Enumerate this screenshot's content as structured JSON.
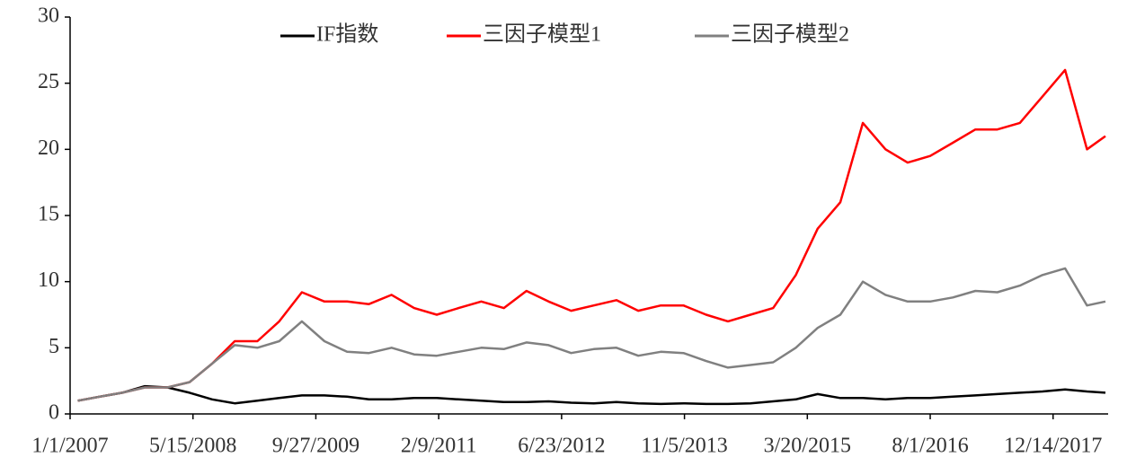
{
  "chart_data": {
    "type": "line",
    "x": [
      "2/1/2007",
      "5/1/2007",
      "8/1/2007",
      "11/1/2007",
      "2/1/2008",
      "5/1/2008",
      "8/1/2008",
      "11/1/2008",
      "2/1/2009",
      "5/1/2009",
      "8/1/2009",
      "11/1/2009",
      "2/1/2010",
      "5/1/2010",
      "8/1/2010",
      "11/1/2010",
      "2/1/2011",
      "5/1/2011",
      "8/1/2011",
      "11/1/2011",
      "2/1/2012",
      "5/1/2012",
      "8/1/2012",
      "11/1/2012",
      "2/1/2013",
      "5/1/2013",
      "8/1/2013",
      "11/1/2013",
      "2/1/2014",
      "5/1/2014",
      "8/1/2014",
      "11/1/2014",
      "2/1/2015",
      "5/1/2015",
      "8/1/2015",
      "11/1/2015",
      "2/1/2016",
      "5/1/2016",
      "8/1/2016",
      "11/1/2016",
      "2/1/2017",
      "5/1/2017",
      "8/1/2017",
      "11/1/2017",
      "2/1/2018",
      "5/1/2018",
      "7/15/2018"
    ],
    "series": [
      {
        "name": "IF指数",
        "color": "#000000",
        "values": [
          1.0,
          1.3,
          1.6,
          2.1,
          2.0,
          1.6,
          1.1,
          0.8,
          1.0,
          1.2,
          1.4,
          1.4,
          1.3,
          1.1,
          1.1,
          1.2,
          1.2,
          1.1,
          1.0,
          0.9,
          0.9,
          0.95,
          0.85,
          0.8,
          0.9,
          0.8,
          0.75,
          0.8,
          0.75,
          0.75,
          0.8,
          0.95,
          1.1,
          1.5,
          1.2,
          1.2,
          1.1,
          1.2,
          1.2,
          1.3,
          1.4,
          1.5,
          1.6,
          1.7,
          1.85,
          1.7,
          1.6
        ]
      },
      {
        "name": "三因子模型1",
        "color": "#ff0000",
        "values": [
          1.0,
          1.3,
          1.6,
          2.0,
          2.0,
          2.4,
          3.8,
          5.5,
          5.5,
          7.0,
          9.2,
          8.5,
          8.5,
          8.3,
          9.0,
          8.0,
          7.5,
          8.0,
          8.5,
          8.0,
          9.3,
          8.5,
          7.8,
          8.2,
          8.6,
          7.8,
          8.2,
          8.2,
          7.5,
          7.0,
          7.5,
          8.0,
          10.5,
          14,
          16,
          22,
          20,
          19.0,
          19.5,
          20.5,
          21.5,
          21.5,
          22,
          24,
          26,
          20,
          21
        ]
      },
      {
        "name": "三因子模型2",
        "color": "#808080",
        "values": [
          1.0,
          1.3,
          1.6,
          2.0,
          2.0,
          2.4,
          3.8,
          5.2,
          5.0,
          5.5,
          7.0,
          5.5,
          4.7,
          4.6,
          5.0,
          4.5,
          4.4,
          4.7,
          5.0,
          4.9,
          5.4,
          5.2,
          4.6,
          4.9,
          5.0,
          4.4,
          4.7,
          4.6,
          4.0,
          3.5,
          3.7,
          3.9,
          5.0,
          6.5,
          7.5,
          10,
          9,
          8.5,
          8.5,
          8.8,
          9.3,
          9.2,
          9.7,
          10.5,
          11,
          8.2,
          8.5
        ]
      }
    ],
    "xlim": [
      "1/1/2007",
      "7/26/2018"
    ],
    "xticks": [
      "1/1/2007",
      "5/15/2008",
      "9/27/2009",
      "2/9/2011",
      "6/23/2012",
      "11/5/2013",
      "3/20/2015",
      "8/1/2016",
      "12/14/2017"
    ],
    "ylim": [
      0,
      30
    ],
    "yticks": [
      0,
      5,
      10,
      15,
      20,
      25,
      30
    ],
    "grid": false,
    "legend": "top"
  }
}
